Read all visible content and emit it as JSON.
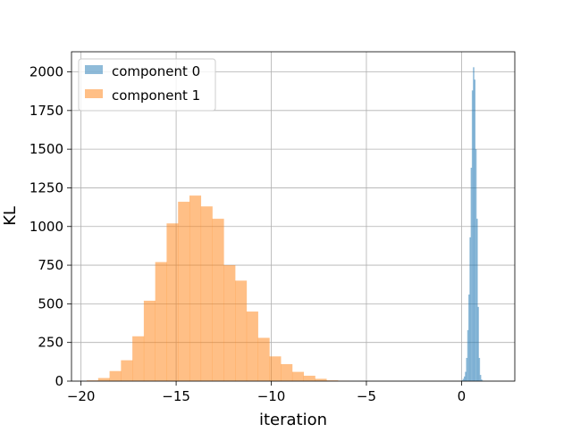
{
  "chart_data": {
    "type": "histogram",
    "xlabel": "iteration",
    "ylabel": "KL",
    "xlim": [
      -20.5,
      2.8
    ],
    "ylim": [
      0,
      2130
    ],
    "xticks": [
      -20,
      -15,
      -10,
      -5,
      0
    ],
    "xtick_labels": [
      "−20",
      "−15",
      "−10",
      "−5",
      "0"
    ],
    "yticks": [
      0,
      250,
      500,
      750,
      1000,
      1250,
      1500,
      1750,
      2000
    ],
    "ytick_labels": [
      "0",
      "250",
      "500",
      "750",
      "1000",
      "1250",
      "1500",
      "1750",
      "2000"
    ],
    "grid": true,
    "legend_position": "upper-left",
    "series": [
      {
        "name": "component 0",
        "color": "#1f77b4",
        "alpha": 0.5,
        "bin_edges": [
          0.0,
          0.06,
          0.12,
          0.18,
          0.24,
          0.3,
          0.36,
          0.42,
          0.48,
          0.54,
          0.6,
          0.66,
          0.72,
          0.78,
          0.84,
          0.9,
          0.96,
          1.02,
          1.08,
          1.14,
          1.2,
          1.26,
          1.32,
          1.38,
          1.44,
          1.5,
          1.56,
          1.62,
          1.68,
          1.74,
          1.8
        ],
        "counts": [
          5,
          15,
          30,
          60,
          150,
          330,
          560,
          930,
          1380,
          1880,
          2030,
          1950,
          1500,
          1050,
          480,
          150,
          40,
          10,
          3,
          0,
          0,
          0,
          0,
          0,
          0,
          0,
          0,
          0,
          0,
          0
        ]
      },
      {
        "name": "component 1",
        "color": "#ff7f0e",
        "alpha": 0.5,
        "bin_edges": [
          -19.7,
          -19.1,
          -18.5,
          -17.9,
          -17.3,
          -16.7,
          -16.1,
          -15.5,
          -14.9,
          -14.3,
          -13.7,
          -13.1,
          -12.5,
          -11.9,
          -11.3,
          -10.7,
          -10.1,
          -9.5,
          -8.9,
          -8.3,
          -7.7,
          -7.1,
          -6.5,
          -5.9
        ],
        "counts": [
          5,
          20,
          65,
          135,
          290,
          520,
          770,
          1020,
          1160,
          1200,
          1130,
          1050,
          750,
          650,
          450,
          280,
          160,
          110,
          60,
          35,
          15,
          5,
          2
        ]
      }
    ]
  }
}
